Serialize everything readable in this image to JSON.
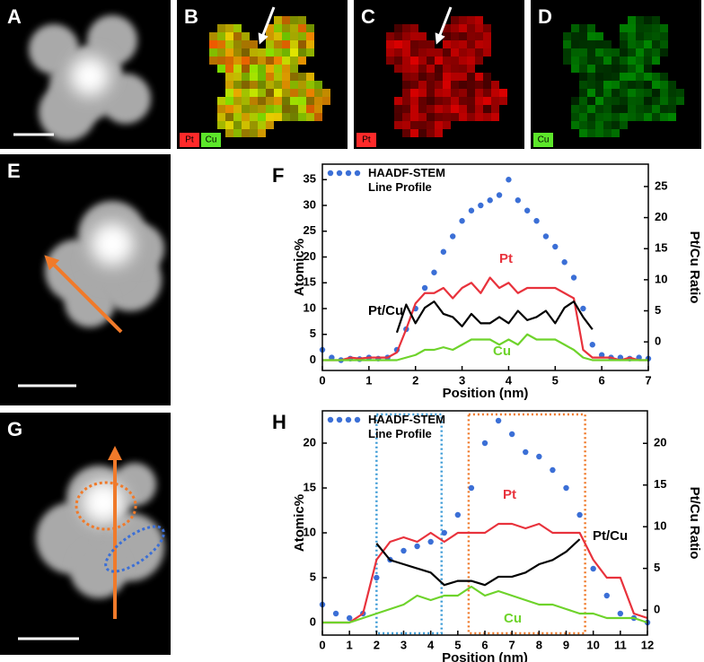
{
  "images": [
    {
      "panel": "A"
    },
    {
      "panel": "B",
      "legend": [
        {
          "name": "Pt",
          "color": "#ff2a2a"
        },
        {
          "name": "Cu",
          "color": "#5ce62a"
        }
      ]
    },
    {
      "panel": "C",
      "legend": [
        {
          "name": "Pt",
          "color": "#ff2a2a"
        }
      ]
    },
    {
      "panel": "D",
      "legend": [
        {
          "name": "Cu",
          "color": "#5ce62a"
        }
      ]
    },
    {
      "panel": "E"
    },
    {
      "panel": "G"
    }
  ],
  "chart_data": [
    {
      "type": "line",
      "panel": "F",
      "xlabel": "Position (nm)",
      "ylabel": "Atomic%",
      "y2label": "Pt/Cu Ratio",
      "legend": "upper left",
      "x": [
        0,
        0.2,
        0.4,
        0.6,
        0.8,
        1,
        1.2,
        1.4,
        1.6,
        1.8,
        2,
        2.2,
        2.4,
        2.6,
        2.8,
        3,
        3.2,
        3.4,
        3.6,
        3.8,
        4,
        4.2,
        4.4,
        4.6,
        4.8,
        5,
        5.2,
        5.4,
        5.6,
        5.8,
        6,
        6.2,
        6.4,
        6.6,
        6.8,
        7
      ],
      "xlim": [
        0,
        7
      ],
      "xticks": [
        0,
        1,
        2,
        3,
        4,
        5,
        6,
        7
      ],
      "ylim": [
        -2,
        38
      ],
      "yticks": [
        0,
        5,
        10,
        15,
        20,
        25,
        30,
        35
      ],
      "y2lim": [
        -4.6,
        28.6
      ],
      "y2ticks": [
        0,
        5,
        10,
        15,
        20,
        25
      ],
      "series": [
        {
          "name": "HAADF-STEM Line Profile",
          "color": "#3b6fd6",
          "style": "dotted",
          "values": [
            2,
            0.5,
            0,
            0.3,
            0.2,
            0.5,
            0.3,
            0.5,
            2,
            6,
            10,
            14,
            17,
            21,
            24,
            27,
            29,
            30,
            31,
            32,
            35,
            31,
            29,
            27,
            24,
            22,
            19,
            16,
            10,
            3,
            1,
            0.5,
            0.5,
            0.3,
            0.5,
            0.3
          ]
        },
        {
          "name": "Pt",
          "color": "#e8323c",
          "values": [
            0,
            0,
            0,
            0.5,
            0.3,
            0.5,
            0.5,
            0.5,
            1.5,
            6,
            11,
            13,
            13,
            14,
            12,
            14,
            15,
            13,
            16,
            14,
            15,
            13,
            14,
            14,
            14,
            14,
            13,
            12,
            2,
            0.5,
            0.5,
            0.5,
            0,
            0.5,
            0,
            0
          ]
        },
        {
          "name": "Cu",
          "color": "#6ed32b",
          "values": [
            0,
            0,
            0,
            0,
            0,
            0,
            0,
            0,
            0,
            0.5,
            1,
            2,
            2,
            2.5,
            2,
            3,
            4,
            4,
            4,
            3,
            4,
            3,
            5,
            4,
            4,
            4,
            3,
            2,
            0.5,
            0,
            0,
            0,
            0,
            0,
            0,
            0
          ]
        },
        {
          "name": "Pt/Cu",
          "color": "#000000",
          "axis": "y2",
          "values": [
            null,
            null,
            null,
            null,
            null,
            null,
            null,
            null,
            1.5,
            6,
            3,
            5.5,
            6.5,
            4.5,
            4,
            2.5,
            4.5,
            3,
            3,
            4,
            3,
            5,
            3.5,
            4,
            5,
            3,
            5.5,
            6.5,
            4,
            2,
            null,
            null,
            null,
            null,
            null,
            null
          ]
        }
      ]
    },
    {
      "type": "line",
      "panel": "H",
      "xlabel": "Position (nm)",
      "ylabel": "Atomic%",
      "y2label": "Pt/Cu Ratio",
      "legend": "upper left",
      "x": [
        0,
        0.5,
        1,
        1.5,
        2,
        2.5,
        3,
        3.5,
        4,
        4.5,
        5,
        5.5,
        6,
        6.5,
        7,
        7.5,
        8,
        8.5,
        9,
        9.5,
        10,
        10.5,
        11,
        11.5,
        12
      ],
      "xlim": [
        0,
        12
      ],
      "xticks": [
        0,
        1,
        2,
        3,
        4,
        5,
        6,
        7,
        8,
        9,
        10,
        11,
        12
      ],
      "ylim": [
        -1.4,
        23.6
      ],
      "yticks": [
        0,
        5,
        10,
        15,
        20
      ],
      "y2lim": [
        -3,
        23.9
      ],
      "y2ticks": [
        0,
        5,
        10,
        15,
        20
      ],
      "series": [
        {
          "name": "HAADF-STEM Line Profile",
          "color": "#3b6fd6",
          "style": "dotted",
          "values": [
            2,
            1,
            0.5,
            1,
            5,
            7,
            8,
            8.5,
            9,
            10,
            12,
            15,
            20,
            22.5,
            21,
            19,
            18.5,
            17,
            15,
            12,
            6,
            3,
            1,
            0.5,
            0
          ]
        },
        {
          "name": "Pt",
          "color": "#e8323c",
          "values": [
            0,
            0,
            0,
            1,
            7,
            9,
            9.5,
            9,
            10,
            9,
            10,
            10,
            10,
            11,
            11,
            10.5,
            11,
            10,
            10,
            10,
            7,
            5,
            5,
            1,
            0.5
          ]
        },
        {
          "name": "Cu",
          "color": "#6ed32b",
          "values": [
            0,
            0,
            0,
            0.5,
            1,
            1.5,
            2,
            3,
            2.5,
            3,
            3,
            4,
            3,
            3.5,
            3,
            2.5,
            2,
            2,
            1.5,
            1,
            1,
            0.5,
            0.5,
            0.5,
            0
          ]
        },
        {
          "name": "Pt/Cu",
          "color": "#000000",
          "axis": "y2",
          "values": [
            null,
            null,
            null,
            null,
            8,
            6,
            5.5,
            5,
            4.5,
            3,
            3.5,
            3.5,
            3,
            4,
            4,
            4.5,
            5.5,
            6,
            7,
            8.5,
            null,
            null,
            null,
            null,
            null
          ]
        }
      ]
    }
  ]
}
